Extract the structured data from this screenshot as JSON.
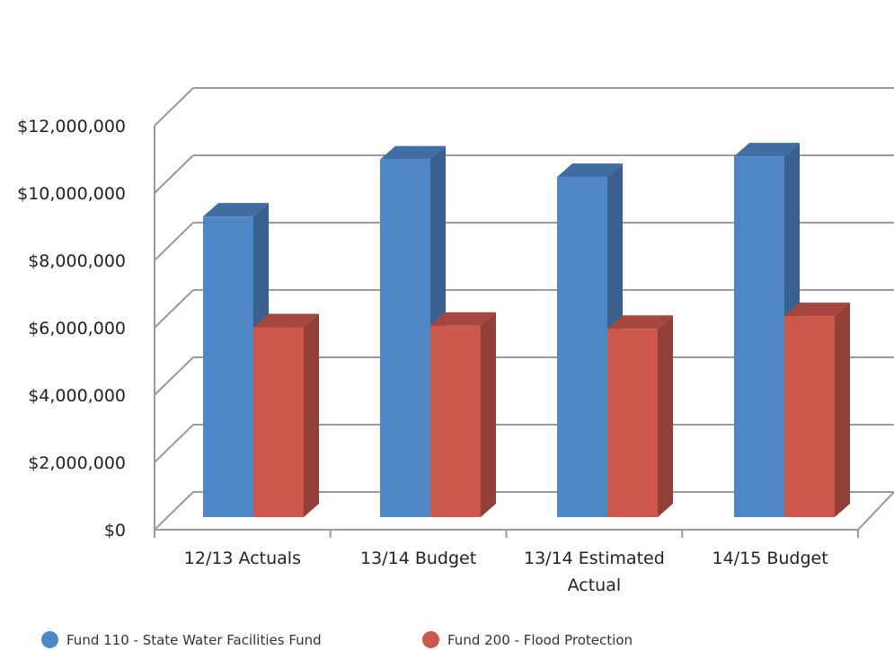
{
  "chart_data": {
    "type": "bar",
    "style": "3d-clustered-column",
    "categories": [
      "12/13 Actuals",
      "13/14 Budget",
      "13/14 Estimated Actual",
      "14/15 Budget"
    ],
    "category_label_lines": [
      [
        "12/13 Actuals"
      ],
      [
        "13/14 Budget"
      ],
      [
        "13/14 Estimated",
        "Actual"
      ],
      [
        "14/15 Budget"
      ]
    ],
    "series": [
      {
        "name": "Fund 110 - State Water Facilities Fund",
        "values": [
          9500000,
          11300000,
          10750000,
          11400000
        ],
        "color": "#4f86c6"
      },
      {
        "name": "Fund 200 - Flood Protection",
        "values": [
          6000000,
          6050000,
          5950000,
          6350000
        ],
        "color": "#cb574d"
      }
    ],
    "yticks": [
      "$0",
      "$2,000,000",
      "$4,000,000",
      "$6,000,000",
      "$8,000,000",
      "$10,000,000",
      "$12,000,000"
    ],
    "ylim": [
      0,
      12000000
    ],
    "grid": true,
    "legend": "bottom",
    "title": "",
    "xlabel": "",
    "ylabel": ""
  }
}
